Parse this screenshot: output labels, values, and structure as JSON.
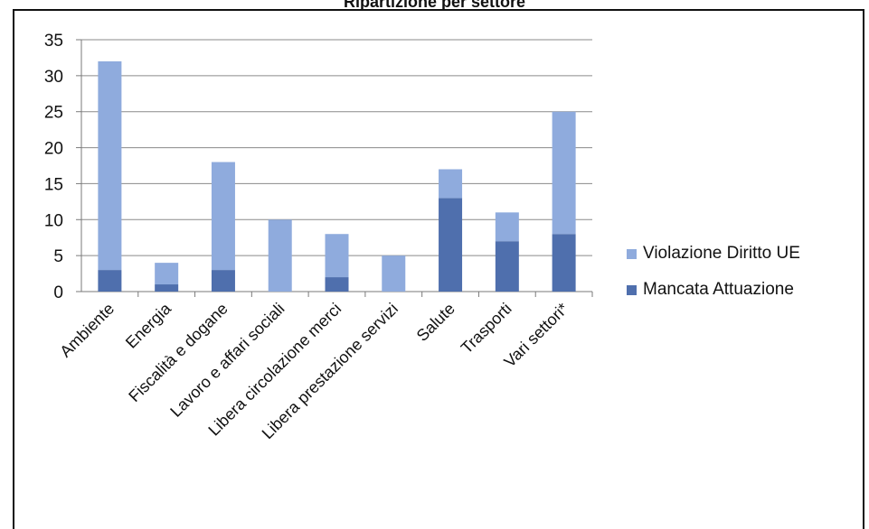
{
  "chart_data": {
    "type": "bar",
    "stacked": true,
    "title": "Ripartizione per settore",
    "categories": [
      "Ambiente",
      "Energia",
      "Fiscalità e dogane",
      "Lavoro e affari sociali",
      "Libera circolazione merci",
      "Libera prestazione servizi",
      "Salute",
      "Trasporti",
      "Vari settori*"
    ],
    "series": [
      {
        "name": "Mancata Attuazione",
        "color": "#4f6fad",
        "values": [
          3,
          1,
          3,
          0,
          2,
          0,
          13,
          7,
          8
        ]
      },
      {
        "name": "Violazione Diritto UE",
        "color": "#8fabdd",
        "values": [
          29,
          3,
          15,
          10,
          6,
          5,
          4,
          4,
          17
        ]
      }
    ],
    "totals": [
      32,
      4,
      18,
      10,
      8,
      5,
      17,
      11,
      25
    ],
    "ylim": [
      0,
      35
    ],
    "yticks": [
      "0",
      "5",
      "10",
      "15",
      "20",
      "25",
      "30",
      "35"
    ],
    "grid": true,
    "legend_position": "right"
  }
}
